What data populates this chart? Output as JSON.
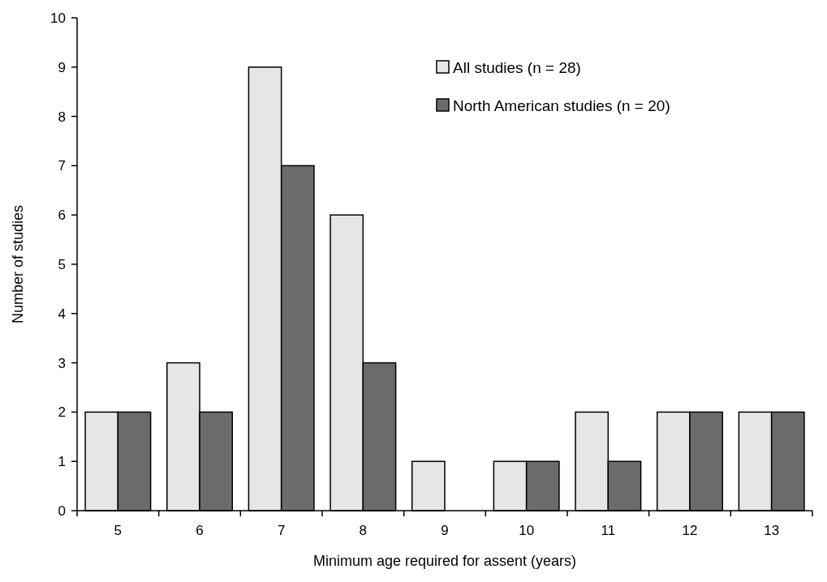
{
  "chart_data": {
    "type": "bar",
    "xlabel": "Minimum age required for assent (years)",
    "ylabel": "Number of studies",
    "categories": [
      "5",
      "6",
      "7",
      "8",
      "9",
      "10",
      "11",
      "12",
      "13"
    ],
    "series": [
      {
        "name": "All studies (n = 28)",
        "color": "#e6e6e6",
        "values": [
          2,
          3,
          9,
          6,
          1,
          1,
          2,
          2,
          2
        ]
      },
      {
        "name": "North American studies (n = 20)",
        "color": "#6b6b6b",
        "values": [
          2,
          2,
          7,
          3,
          0,
          1,
          1,
          2,
          2
        ]
      }
    ],
    "ylim": [
      0,
      10
    ],
    "yticks": [
      0,
      1,
      2,
      3,
      4,
      5,
      6,
      7,
      8,
      9,
      10
    ],
    "grid": false,
    "legend": "top right"
  }
}
